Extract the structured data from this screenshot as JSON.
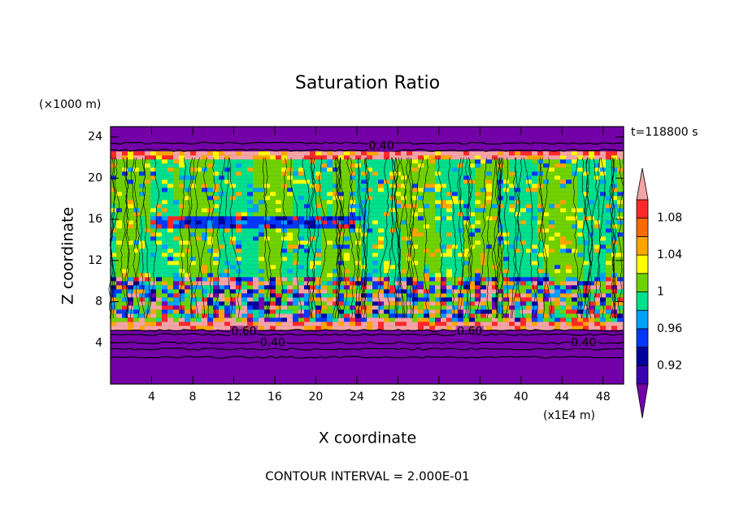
{
  "chart_data": {
    "type": "contour",
    "title": "Saturation Ratio",
    "x_label": "X coordinate",
    "y_label": "Z coordinate",
    "x_unit": "(x1E4 m)",
    "y_unit": "(×1000 m)",
    "time_label": "t=118800 s",
    "footer": "CONTOUR INTERVAL = 2.000E-01",
    "xlim": [
      0,
      50
    ],
    "xticks": [
      4,
      8,
      12,
      16,
      20,
      24,
      28,
      32,
      36,
      40,
      44,
      48
    ],
    "ylim": [
      0,
      25
    ],
    "yticks": [
      4,
      8,
      12,
      16,
      20,
      24
    ],
    "contour_labels": [
      {
        "value": 0.4,
        "label": "0.40"
      },
      {
        "value": 0.4,
        "label": "0.40"
      },
      {
        "value": 0.4,
        "label": "0.40"
      },
      {
        "value": 0.6,
        "label": "0.60"
      },
      {
        "value": 0.6,
        "label": "0.60"
      }
    ],
    "colorbar": {
      "levels": [
        0.9,
        0.92,
        0.94,
        0.96,
        0.98,
        1.0,
        1.02,
        1.04,
        1.06,
        1.08,
        1.1
      ],
      "colors": [
        "#7400a8",
        "#3c00b4",
        "#0000a0",
        "#0038ff",
        "#00a0ff",
        "#00e08c",
        "#6ed200",
        "#ffff00",
        "#ffa500",
        "#ff6a00",
        "#ff2828",
        "#f4a4a4"
      ],
      "ticks": [
        0.92,
        0.96,
        1,
        1.04,
        1.08
      ]
    }
  }
}
